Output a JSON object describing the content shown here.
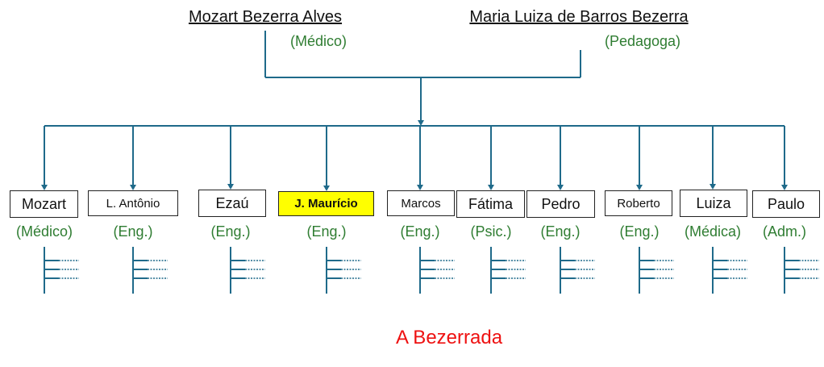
{
  "colors": {
    "line": "#1f6a8a",
    "profession": "#2f7d32",
    "title": "#ee1111",
    "highlight": "#ffff00"
  },
  "parents": [
    {
      "name": "Mozart Bezerra Alves",
      "profession": "(Médico)"
    },
    {
      "name": "Maria Luiza de Barros Bezerra",
      "profession": "(Pedagoga)"
    }
  ],
  "children": [
    {
      "name": "Mozart",
      "profession": "(Médico)",
      "highlighted": false
    },
    {
      "name": "L. Antônio",
      "profession": "(Eng.)",
      "highlighted": false
    },
    {
      "name": "Ezaú",
      "profession": "(Eng.)",
      "highlighted": false
    },
    {
      "name": "J. Maurício",
      "profession": "(Eng.)",
      "highlighted": true
    },
    {
      "name": "Marcos",
      "profession": "(Eng.)",
      "highlighted": false
    },
    {
      "name": "Fátima",
      "profession": "(Psic.)",
      "highlighted": false
    },
    {
      "name": "Pedro",
      "profession": "(Eng.)",
      "highlighted": false
    },
    {
      "name": "Roberto",
      "profession": "(Eng.)",
      "highlighted": false
    },
    {
      "name": "Luiza",
      "profession": "(Médica)",
      "highlighted": false
    },
    {
      "name": "Paulo",
      "profession": "(Adm.)",
      "highlighted": false
    }
  ],
  "title": "A Bezerrada"
}
